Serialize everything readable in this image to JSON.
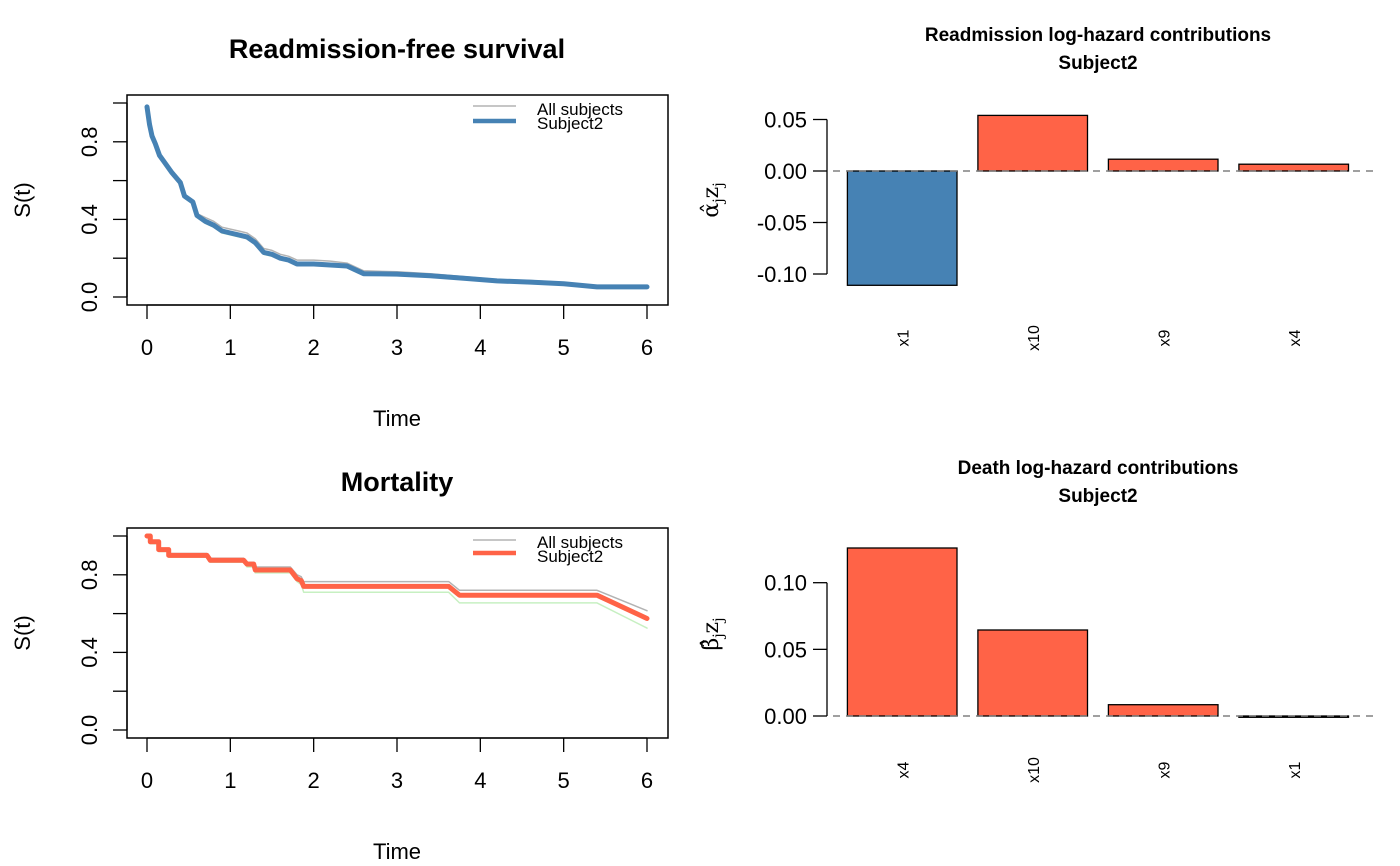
{
  "chart_data": [
    {
      "id": "readmission",
      "type": "line",
      "title": "Readmission-free survival",
      "xlabel": "Time",
      "ylabel": "S(t)",
      "xlim": [
        0,
        6
      ],
      "ylim": [
        0,
        1
      ],
      "xticks": [
        0,
        1,
        2,
        3,
        4,
        5,
        6
      ],
      "xtick_labels": [
        "0",
        "1",
        "2",
        "3",
        "4",
        "5",
        "6"
      ],
      "yticks": [
        0,
        0.2,
        0.4,
        0.6,
        0.8,
        1.0
      ],
      "ytick_labels": [
        "0.0",
        "",
        "0.4",
        "",
        "0.8",
        ""
      ],
      "legend": {
        "position": "top-right",
        "entries": [
          "All subjects",
          "Subject2"
        ]
      },
      "series": [
        {
          "name": "All subjects",
          "color": "#b3b3b3",
          "x": [
            0,
            0.03,
            0.06,
            0.1,
            0.15,
            0.2,
            0.3,
            0.4,
            0.45,
            0.55,
            0.6,
            0.7,
            0.8,
            0.9,
            1.0,
            1.1,
            1.2,
            1.3,
            1.4,
            1.5,
            1.6,
            1.7,
            1.8,
            2.0,
            2.2,
            2.4,
            2.5,
            2.6,
            3.0,
            3.4,
            3.8,
            4.2,
            4.6,
            5.0,
            5.4,
            6.0
          ],
          "y": [
            0.98,
            0.9,
            0.84,
            0.8,
            0.74,
            0.71,
            0.65,
            0.6,
            0.53,
            0.5,
            0.43,
            0.41,
            0.39,
            0.36,
            0.35,
            0.34,
            0.33,
            0.3,
            0.25,
            0.24,
            0.22,
            0.21,
            0.19,
            0.19,
            0.185,
            0.175,
            0.155,
            0.135,
            0.13,
            0.12,
            0.105,
            0.09,
            0.085,
            0.075,
            0.058,
            0.058
          ]
        },
        {
          "name": "Subject2",
          "color": "#4682b4",
          "x": [
            0,
            0.03,
            0.06,
            0.1,
            0.15,
            0.2,
            0.3,
            0.4,
            0.45,
            0.55,
            0.6,
            0.7,
            0.8,
            0.9,
            1.0,
            1.1,
            1.2,
            1.3,
            1.4,
            1.5,
            1.6,
            1.7,
            1.8,
            2.0,
            2.2,
            2.4,
            2.5,
            2.6,
            3.0,
            3.4,
            3.8,
            4.2,
            4.6,
            5.0,
            5.4,
            6.0
          ],
          "y": [
            0.98,
            0.89,
            0.83,
            0.79,
            0.73,
            0.7,
            0.64,
            0.59,
            0.52,
            0.49,
            0.42,
            0.39,
            0.37,
            0.34,
            0.33,
            0.32,
            0.31,
            0.28,
            0.23,
            0.22,
            0.2,
            0.19,
            0.17,
            0.17,
            0.165,
            0.16,
            0.14,
            0.12,
            0.118,
            0.11,
            0.097,
            0.083,
            0.077,
            0.068,
            0.052,
            0.052
          ]
        },
        {
          "name": "Subject2 lower band",
          "color": "#c7f0c2",
          "x": [
            0,
            0.03,
            0.06,
            0.1,
            0.15,
            0.2,
            0.3,
            0.4,
            0.45,
            0.55,
            0.6,
            0.7,
            0.8,
            0.9,
            1.0,
            1.1,
            1.2,
            1.3,
            1.4,
            1.5,
            1.6,
            1.7,
            1.8,
            2.0,
            2.2,
            2.4,
            2.5,
            2.6,
            3.0,
            3.4,
            3.8,
            4.2,
            4.6,
            5.0,
            5.4,
            6.0
          ],
          "y": [
            0.97,
            0.88,
            0.82,
            0.78,
            0.72,
            0.69,
            0.63,
            0.58,
            0.51,
            0.48,
            0.41,
            0.38,
            0.36,
            0.33,
            0.32,
            0.31,
            0.3,
            0.27,
            0.22,
            0.21,
            0.195,
            0.185,
            0.165,
            0.165,
            0.16,
            0.155,
            0.135,
            0.115,
            0.113,
            0.105,
            0.092,
            0.079,
            0.073,
            0.064,
            0.049,
            0.049
          ]
        }
      ]
    },
    {
      "id": "readmission_contrib",
      "type": "bar",
      "title": "Readmission log-hazard contributions",
      "subtitle": "Subject2",
      "xlabel": "",
      "ylabel": "α̂jzj",
      "ylabel_parts": {
        "symbol": "α̂",
        "sub1": "j",
        "var": "z",
        "sub2": "j"
      },
      "categories": [
        "x1",
        "x10",
        "x9",
        "x4"
      ],
      "values": [
        -0.111,
        0.054,
        0.0115,
        0.0066
      ],
      "colors": [
        "#4682b4",
        "#ff6347",
        "#ff6347",
        "#ff6347"
      ],
      "yticks": [
        -0.1,
        -0.05,
        0.0,
        0.05
      ],
      "ytick_labels": [
        "-0.10",
        "-0.05",
        "0.00",
        "0.05"
      ],
      "ylim": [
        -0.115,
        0.06
      ],
      "reference_line": 0
    },
    {
      "id": "mortality",
      "type": "line",
      "title": "Mortality",
      "xlabel": "Time",
      "ylabel": "S(t)",
      "xlim": [
        0,
        6
      ],
      "ylim": [
        0,
        1
      ],
      "xticks": [
        0,
        1,
        2,
        3,
        4,
        5,
        6
      ],
      "xtick_labels": [
        "0",
        "1",
        "2",
        "3",
        "4",
        "5",
        "6"
      ],
      "yticks": [
        0,
        0.2,
        0.4,
        0.6,
        0.8,
        1.0
      ],
      "ytick_labels": [
        "0.0",
        "",
        "0.4",
        "",
        "0.8",
        ""
      ],
      "legend": {
        "position": "top-right",
        "entries": [
          "All subjects",
          "Subject2"
        ]
      },
      "series": [
        {
          "name": "All subjects",
          "color": "#b3b3b3",
          "x": [
            0,
            0.04,
            0.04,
            0.14,
            0.14,
            0.26,
            0.26,
            0.72,
            0.76,
            1.16,
            1.2,
            1.28,
            1.3,
            1.72,
            1.8,
            1.85,
            1.88,
            3.62,
            3.75,
            5.4,
            6.0
          ],
          "y": [
            1.0,
            1.0,
            0.97,
            0.97,
            0.935,
            0.935,
            0.91,
            0.91,
            0.885,
            0.885,
            0.865,
            0.865,
            0.84,
            0.84,
            0.8,
            0.79,
            0.765,
            0.765,
            0.72,
            0.72,
            0.615
          ]
        },
        {
          "name": "Subject2",
          "color": "#ff6347",
          "x": [
            0,
            0.04,
            0.04,
            0.14,
            0.14,
            0.26,
            0.26,
            0.72,
            0.76,
            1.16,
            1.2,
            1.28,
            1.3,
            1.72,
            1.8,
            1.85,
            1.88,
            3.62,
            3.75,
            5.4,
            6.0
          ],
          "y": [
            1.0,
            1.0,
            0.97,
            0.97,
            0.93,
            0.93,
            0.9,
            0.9,
            0.875,
            0.875,
            0.855,
            0.855,
            0.825,
            0.825,
            0.78,
            0.77,
            0.74,
            0.74,
            0.695,
            0.695,
            0.575
          ]
        },
        {
          "name": "Subject2 lower band",
          "color": "#c7f0c2",
          "x": [
            0,
            0.04,
            0.04,
            0.14,
            0.14,
            0.26,
            0.26,
            0.72,
            0.76,
            1.16,
            1.2,
            1.28,
            1.3,
            1.72,
            1.8,
            1.85,
            1.88,
            3.62,
            3.75,
            5.4,
            6.0
          ],
          "y": [
            0.99,
            0.99,
            0.96,
            0.96,
            0.92,
            0.92,
            0.89,
            0.89,
            0.865,
            0.865,
            0.84,
            0.84,
            0.81,
            0.81,
            0.765,
            0.75,
            0.71,
            0.71,
            0.655,
            0.655,
            0.525
          ]
        }
      ]
    },
    {
      "id": "death_contrib",
      "type": "bar",
      "title": "Death log-hazard contributions",
      "subtitle": "Subject2",
      "xlabel": "",
      "ylabel": "β̂jzj",
      "ylabel_parts": {
        "symbol": "β̂",
        "sub1": "j",
        "var": "z",
        "sub2": "j"
      },
      "categories": [
        "x4",
        "x10",
        "x9",
        "x1"
      ],
      "values": [
        0.126,
        0.0645,
        0.0085,
        -0.001
      ],
      "colors": [
        "#ff6347",
        "#ff6347",
        "#ff6347",
        "#4682b4"
      ],
      "yticks": [
        0.0,
        0.05,
        0.1
      ],
      "ytick_labels": [
        "0.00",
        "0.05",
        "0.10"
      ],
      "ylim": [
        -0.005,
        0.13
      ],
      "reference_line": 0
    }
  ]
}
